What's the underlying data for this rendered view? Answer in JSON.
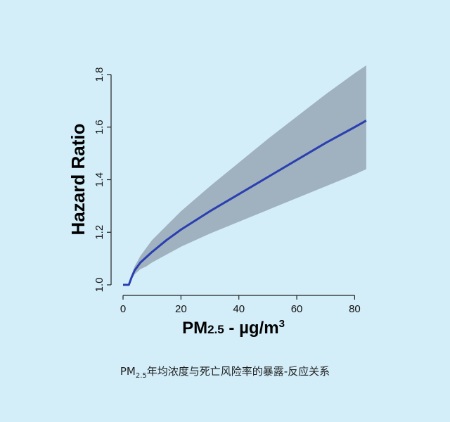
{
  "chart_data": {
    "type": "line",
    "xlabel": {
      "main": "PM",
      "sub": "2.5",
      "unit": " - µg/m",
      "sup": "3"
    },
    "ylabel": "Hazard Ratio",
    "xlim": [
      0,
      85
    ],
    "ylim": [
      1.0,
      1.8
    ],
    "x_ticks": [
      0,
      20,
      40,
      60,
      80
    ],
    "y_ticks": [
      1.0,
      1.2,
      1.4,
      1.6,
      1.8
    ],
    "y_tick_labels": [
      "1.0",
      "1.2",
      "1.4",
      "1.6",
      "1.8"
    ],
    "grid": false,
    "series": [
      {
        "color": "#2a3fb0",
        "x": [
          0,
          2,
          3,
          4,
          5,
          6,
          8,
          10,
          15,
          20,
          30,
          40,
          50,
          60,
          70,
          80,
          84
        ],
        "y": [
          1.0,
          1.0,
          1.03,
          1.055,
          1.07,
          1.085,
          1.105,
          1.125,
          1.17,
          1.21,
          1.28,
          1.345,
          1.41,
          1.475,
          1.54,
          1.6,
          1.625
        ],
        "band_lower": [
          1.0,
          1.0,
          1.022,
          1.04,
          1.05,
          1.06,
          1.07,
          1.085,
          1.115,
          1.145,
          1.195,
          1.24,
          1.285,
          1.33,
          1.375,
          1.42,
          1.44
        ],
        "band_upper": [
          1.0,
          1.0,
          1.038,
          1.07,
          1.09,
          1.11,
          1.14,
          1.17,
          1.225,
          1.28,
          1.375,
          1.465,
          1.555,
          1.64,
          1.725,
          1.805,
          1.835
        ]
      }
    ],
    "band_color": "#a0b1bf"
  },
  "caption": {
    "pm": "PM",
    "sub": "2.5",
    "text": "年均浓度与死亡风险率的暴露-反应关系"
  }
}
